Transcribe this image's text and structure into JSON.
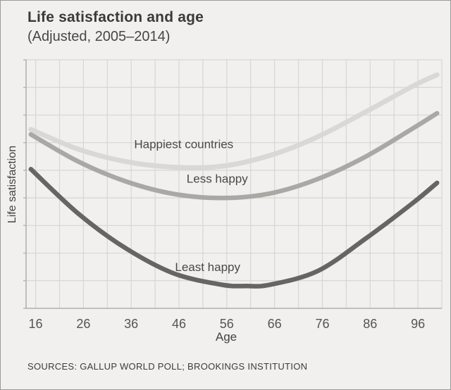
{
  "header": {
    "title": "Life satisfaction and age",
    "subtitle": "(Adjusted, 2005–2014)"
  },
  "footer": {
    "source": "SOURCES: GALLUP WORLD POLL; BROOKINGS INSTITUTION"
  },
  "chart_data": {
    "type": "line",
    "title": "Life satisfaction and age",
    "subtitle": "(Adjusted, 2005-2014)",
    "xlabel": "Age",
    "ylabel": "Life satisfaction",
    "x_ticks": [
      16,
      26,
      36,
      46,
      56,
      66,
      76,
      86,
      96
    ],
    "x_range": [
      14,
      101
    ],
    "y_range": [
      0,
      10
    ],
    "grid": true,
    "grid_color": "#d7d6d2",
    "axis_color": "#b3b2ae",
    "tick_label_color": "#56544f",
    "series_label_color": "#4a4845",
    "series": [
      {
        "name": "Happiest countries",
        "color": "#d9d8d4",
        "stroke_width": 7,
        "label": {
          "text": "Happiest countries",
          "x": 47,
          "y": 6.45
        },
        "points": [
          [
            15,
            7.2
          ],
          [
            25,
            6.4
          ],
          [
            35,
            5.9
          ],
          [
            45,
            5.68
          ],
          [
            55,
            5.72
          ],
          [
            65,
            6.15
          ],
          [
            75,
            6.9
          ],
          [
            85,
            7.9
          ],
          [
            95,
            8.95
          ],
          [
            100,
            9.4
          ]
        ]
      },
      {
        "name": "Less happy",
        "color": "#a9a8a4",
        "stroke_width": 6.5,
        "label": {
          "text": "Less happy",
          "x": 54,
          "y": 5.05
        },
        "points": [
          [
            15,
            7.0
          ],
          [
            25,
            5.9
          ],
          [
            35,
            5.1
          ],
          [
            45,
            4.6
          ],
          [
            55,
            4.44
          ],
          [
            65,
            4.62
          ],
          [
            75,
            5.2
          ],
          [
            85,
            6.1
          ],
          [
            95,
            7.25
          ],
          [
            100,
            7.85
          ]
        ]
      },
      {
        "name": "Least happy",
        "color": "#656562",
        "stroke_width": 6.5,
        "label": {
          "text": "Least happy",
          "x": 52,
          "y": 1.5
        },
        "points": [
          [
            15,
            5.6
          ],
          [
            25,
            3.8
          ],
          [
            35,
            2.4
          ],
          [
            45,
            1.4
          ],
          [
            55,
            0.95
          ],
          [
            60,
            0.9
          ],
          [
            65,
            0.95
          ],
          [
            75,
            1.5
          ],
          [
            85,
            2.8
          ],
          [
            95,
            4.25
          ],
          [
            100,
            5.05
          ]
        ]
      }
    ]
  }
}
